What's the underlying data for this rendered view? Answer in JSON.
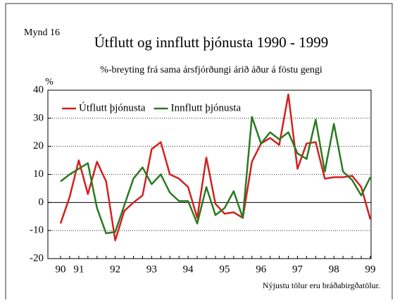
{
  "chart_data": {
    "type": "line",
    "figure_label": "Mynd 16",
    "title": "Útflutt og innflutt þjónusta 1990 - 1999",
    "subtitle": "%-breyting frá sama ársfjórðungi árið áður á föstu gengi",
    "y_label": "%",
    "note": "Nýjustu tölur eru bráðabirgðatölur.",
    "categories": [
      "90",
      null,
      "91",
      null,
      null,
      null,
      "92",
      null,
      null,
      null,
      "93",
      null,
      null,
      null,
      "94",
      null,
      null,
      null,
      "95",
      null,
      null,
      null,
      "96",
      null,
      null,
      null,
      "97",
      null,
      null,
      null,
      "98",
      null,
      null,
      null,
      "99"
    ],
    "series": [
      {
        "name": "Útflutt þjónusta",
        "color": "#d42020",
        "values": [
          -7.5,
          2,
          15,
          3,
          14.5,
          7.5,
          -13.5,
          -3,
          0,
          2.5,
          19,
          21.5,
          10,
          8.5,
          5.5,
          -5.5,
          16,
          -0.5,
          -4,
          -3.5,
          -5.5,
          14.5,
          21,
          23,
          20.5,
          38.5,
          12,
          21,
          21.5,
          8.5,
          9,
          9,
          9.5,
          5.5,
          -6
        ]
      },
      {
        "name": "Innflutt þjónusta",
        "color": "#2a7a20",
        "values": [
          7.5,
          10,
          12,
          14,
          -2,
          -11,
          -10.5,
          -1,
          8.5,
          12.5,
          6.5,
          10,
          3.5,
          0.5,
          0.5,
          -7.5,
          5.5,
          -4.5,
          -2,
          4,
          -5.5,
          30.5,
          21,
          25,
          22.5,
          25,
          17.5,
          15.5,
          29.5,
          11,
          28,
          11,
          8,
          2.5,
          9
        ]
      }
    ],
    "ylim": [
      -20,
      40
    ],
    "yticks": [
      -20,
      -10,
      0,
      10,
      20,
      30,
      40
    ],
    "grid": true,
    "legend": "top-left"
  }
}
